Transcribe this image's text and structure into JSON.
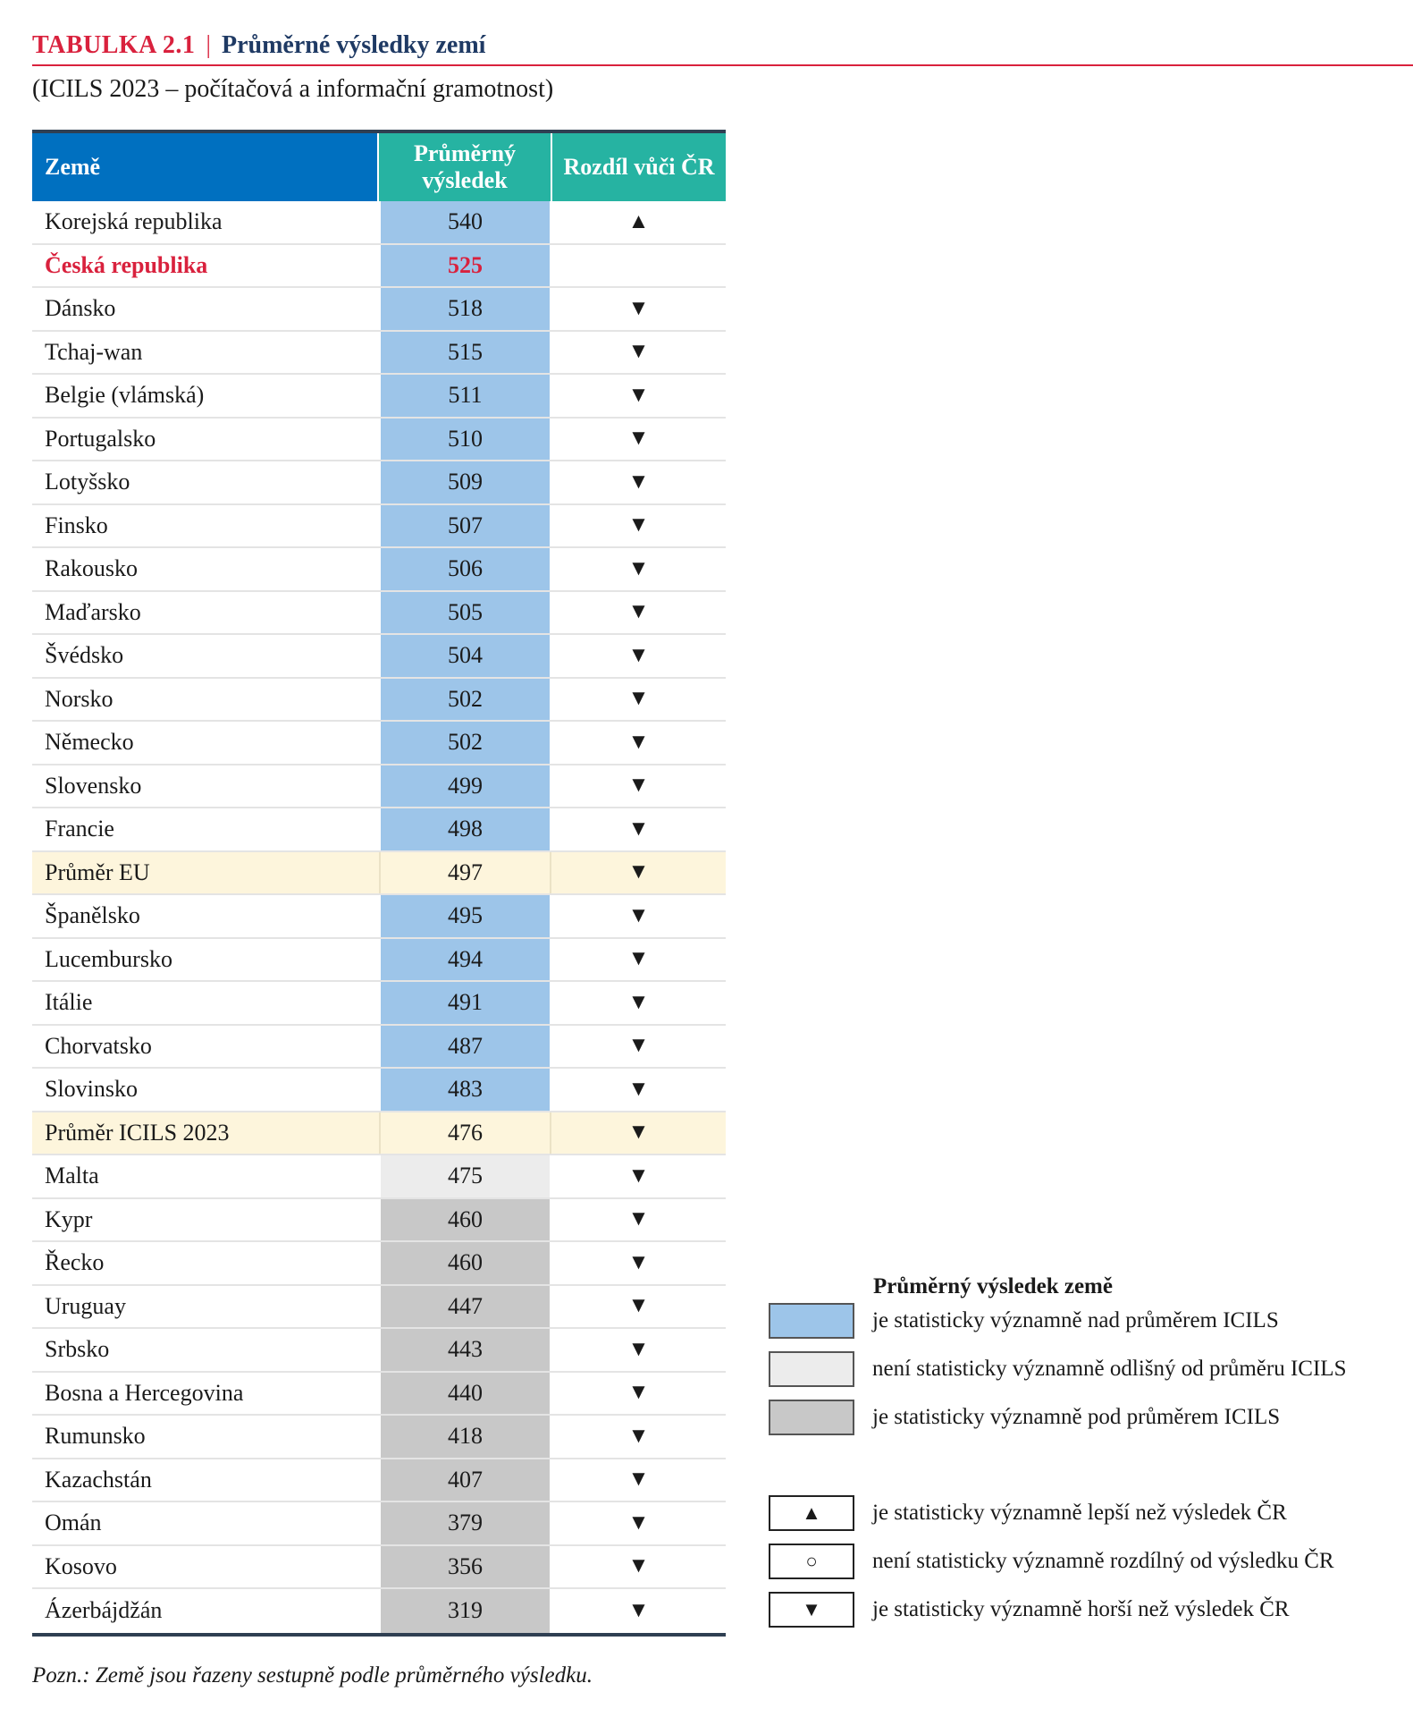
{
  "header": {
    "label": "TABULKA 2.1",
    "separator": "|",
    "name": "Průměrné výsledky zemí",
    "subtitle": "(ICILS 2023 – počítačová a informační gramotnost)"
  },
  "table": {
    "columns": [
      "Země",
      "Průměrný výsledek",
      "Rozdíl vůči ČR"
    ],
    "category_colors": {
      "above": "#9dc5e9",
      "not_different": "#ececec",
      "below": "#c8c8c8",
      "average": "#fdf5dc"
    },
    "rows": [
      {
        "country": "Korejská republika",
        "mean": "540",
        "diff": "▲",
        "category": "above"
      },
      {
        "country": "Česká republika",
        "mean": "525",
        "diff": "",
        "category": "above",
        "highlight": true
      },
      {
        "country": "Dánsko",
        "mean": "518",
        "diff": "▼",
        "category": "above"
      },
      {
        "country": "Tchaj-wan",
        "mean": "515",
        "diff": "▼",
        "category": "above"
      },
      {
        "country": "Belgie (vlámská)",
        "mean": "511",
        "diff": "▼",
        "category": "above"
      },
      {
        "country": "Portugalsko",
        "mean": "510",
        "diff": "▼",
        "category": "above"
      },
      {
        "country": "Lotyšsko",
        "mean": "509",
        "diff": "▼",
        "category": "above"
      },
      {
        "country": "Finsko",
        "mean": "507",
        "diff": "▼",
        "category": "above"
      },
      {
        "country": "Rakousko",
        "mean": "506",
        "diff": "▼",
        "category": "above"
      },
      {
        "country": "Maďarsko",
        "mean": "505",
        "diff": "▼",
        "category": "above"
      },
      {
        "country": "Švédsko",
        "mean": "504",
        "diff": "▼",
        "category": "above"
      },
      {
        "country": "Norsko",
        "mean": "502",
        "diff": "▼",
        "category": "above"
      },
      {
        "country": "Německo",
        "mean": "502",
        "diff": "▼",
        "category": "above"
      },
      {
        "country": "Slovensko",
        "mean": "499",
        "diff": "▼",
        "category": "above"
      },
      {
        "country": "Francie",
        "mean": "498",
        "diff": "▼",
        "category": "above"
      },
      {
        "country": "Průměr EU",
        "mean": "497",
        "diff": "▼",
        "category": "average"
      },
      {
        "country": "Španělsko",
        "mean": "495",
        "diff": "▼",
        "category": "above"
      },
      {
        "country": "Lucembursko",
        "mean": "494",
        "diff": "▼",
        "category": "above"
      },
      {
        "country": "Itálie",
        "mean": "491",
        "diff": "▼",
        "category": "above"
      },
      {
        "country": "Chorvatsko",
        "mean": "487",
        "diff": "▼",
        "category": "above"
      },
      {
        "country": "Slovinsko",
        "mean": "483",
        "diff": "▼",
        "category": "above"
      },
      {
        "country": "Průměr ICILS 2023",
        "mean": "476",
        "diff": "▼",
        "category": "average"
      },
      {
        "country": "Malta",
        "mean": "475",
        "diff": "▼",
        "category": "not_different"
      },
      {
        "country": "Kypr",
        "mean": "460",
        "diff": "▼",
        "category": "below"
      },
      {
        "country": "Řecko",
        "mean": "460",
        "diff": "▼",
        "category": "below"
      },
      {
        "country": "Uruguay",
        "mean": "447",
        "diff": "▼",
        "category": "below"
      },
      {
        "country": "Srbsko",
        "mean": "443",
        "diff": "▼",
        "category": "below"
      },
      {
        "country": "Bosna a Hercegovina",
        "mean": "440",
        "diff": "▼",
        "category": "below"
      },
      {
        "country": "Rumunsko",
        "mean": "418",
        "diff": "▼",
        "category": "below"
      },
      {
        "country": "Kazachstán",
        "mean": "407",
        "diff": "▼",
        "category": "below"
      },
      {
        "country": "Omán",
        "mean": "379",
        "diff": "▼",
        "category": "below"
      },
      {
        "country": "Kosovo",
        "mean": "356",
        "diff": "▼",
        "category": "below"
      },
      {
        "country": "Ázerbájdžán",
        "mean": "319",
        "diff": "▼",
        "category": "below"
      }
    ]
  },
  "legend": {
    "title": "Průměrný výsledek země",
    "colors": [
      {
        "color": "#9dc5e9",
        "text": "je statisticky významně nad průměrem ICILS"
      },
      {
        "color": "#ececec",
        "text": "není statisticky významně odlišný od průměru ICILS"
      },
      {
        "color": "#c8c8c8",
        "text": "je statisticky významně pod průměrem ICILS"
      }
    ],
    "symbols": [
      {
        "symbol": "▲",
        "text": "je statisticky významně lepší než výsledek ČR"
      },
      {
        "symbol": "○",
        "text": "není statisticky významně rozdílný od výsledku ČR"
      },
      {
        "symbol": "▼",
        "text": "je statisticky významně horší než výsledek ČR"
      }
    ]
  },
  "note": "Pozn.: Země jsou řazeny sestupně podle průměrného výsledku."
}
